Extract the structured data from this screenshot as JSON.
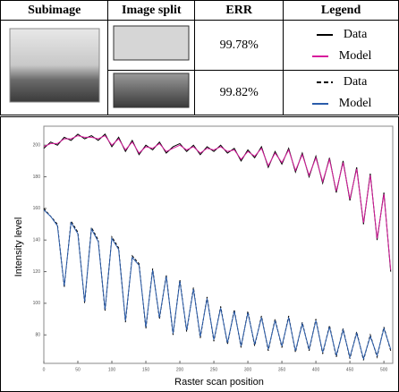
{
  "table": {
    "header": [
      "Subimage",
      "Image split",
      "ERR",
      "Legend"
    ],
    "rows": [
      {
        "err": "99.78%"
      },
      {
        "err": "99.82%"
      }
    ]
  },
  "chart_data": {
    "type": "line",
    "x_label": "Raster scan position",
    "y_label": "Intensity level",
    "x": [
      0,
      10,
      20,
      30,
      40,
      50,
      60,
      70,
      80,
      90,
      100,
      110,
      120,
      130,
      140,
      150,
      160,
      170,
      180,
      190,
      200,
      210,
      220,
      230,
      240,
      250,
      260,
      270,
      280,
      290,
      300,
      310,
      320,
      330,
      340,
      350,
      360,
      370,
      380,
      390,
      400,
      410,
      420,
      430,
      440,
      450,
      460,
      470,
      480,
      490,
      500,
      510
    ],
    "series": [
      {
        "name": "Data",
        "color": "#000000",
        "dash": false,
        "values": [
          198,
          202,
          200,
          205,
          203,
          207,
          204,
          206,
          203,
          207,
          199,
          205,
          196,
          203,
          194,
          200,
          197,
          202,
          195,
          199,
          201,
          196,
          200,
          194,
          199,
          196,
          200,
          195,
          198,
          190,
          197,
          192,
          199,
          186,
          196,
          188,
          198,
          183,
          195,
          180,
          193,
          176,
          192,
          170,
          190,
          165,
          186,
          150,
          182,
          140,
          170,
          120
        ]
      },
      {
        "name": "Model",
        "color": "#d81b9c",
        "dash": false,
        "values": [
          199,
          201,
          201,
          204,
          204,
          206,
          205,
          205,
          204,
          206,
          200,
          204,
          197,
          202,
          195,
          199,
          198,
          201,
          196,
          198,
          200,
          197,
          199,
          195,
          198,
          197,
          199,
          196,
          197,
          191,
          196,
          193,
          198,
          187,
          195,
          189,
          197,
          184,
          194,
          181,
          192,
          177,
          191,
          171,
          189,
          166,
          185,
          151,
          181,
          141,
          169,
          121
        ]
      },
      {
        "name": "Data",
        "color": "#000000",
        "dash": true,
        "values": [
          160,
          155,
          150,
          110,
          152,
          145,
          100,
          148,
          140,
          95,
          142,
          135,
          88,
          130,
          125,
          84,
          122,
          90,
          118,
          80,
          115,
          82,
          110,
          78,
          104,
          76,
          98,
          74,
          96,
          72,
          95,
          73,
          92,
          70,
          90,
          72,
          92,
          69,
          88,
          70,
          90,
          68,
          86,
          66,
          84,
          65,
          82,
          64,
          80,
          66,
          85,
          70
        ]
      },
      {
        "name": "Model",
        "color": "#2a5caa",
        "dash": false,
        "values": [
          159,
          155,
          149,
          111,
          151,
          144,
          101,
          147,
          139,
          96,
          141,
          134,
          89,
          129,
          124,
          85,
          121,
          91,
          117,
          81,
          114,
          83,
          109,
          79,
          103,
          77,
          97,
          75,
          95,
          73,
          94,
          74,
          91,
          71,
          89,
          73,
          91,
          70,
          87,
          71,
          89,
          69,
          85,
          67,
          83,
          66,
          81,
          65,
          79,
          67,
          84,
          71
        ]
      }
    ],
    "xlim": [
      0,
      513
    ],
    "ylim": [
      62,
      212
    ],
    "xticks": [
      0,
      50,
      100,
      150,
      200,
      250,
      300,
      350,
      400,
      450,
      500
    ],
    "yticks": [
      80,
      100,
      120,
      140,
      160,
      180,
      200
    ]
  }
}
